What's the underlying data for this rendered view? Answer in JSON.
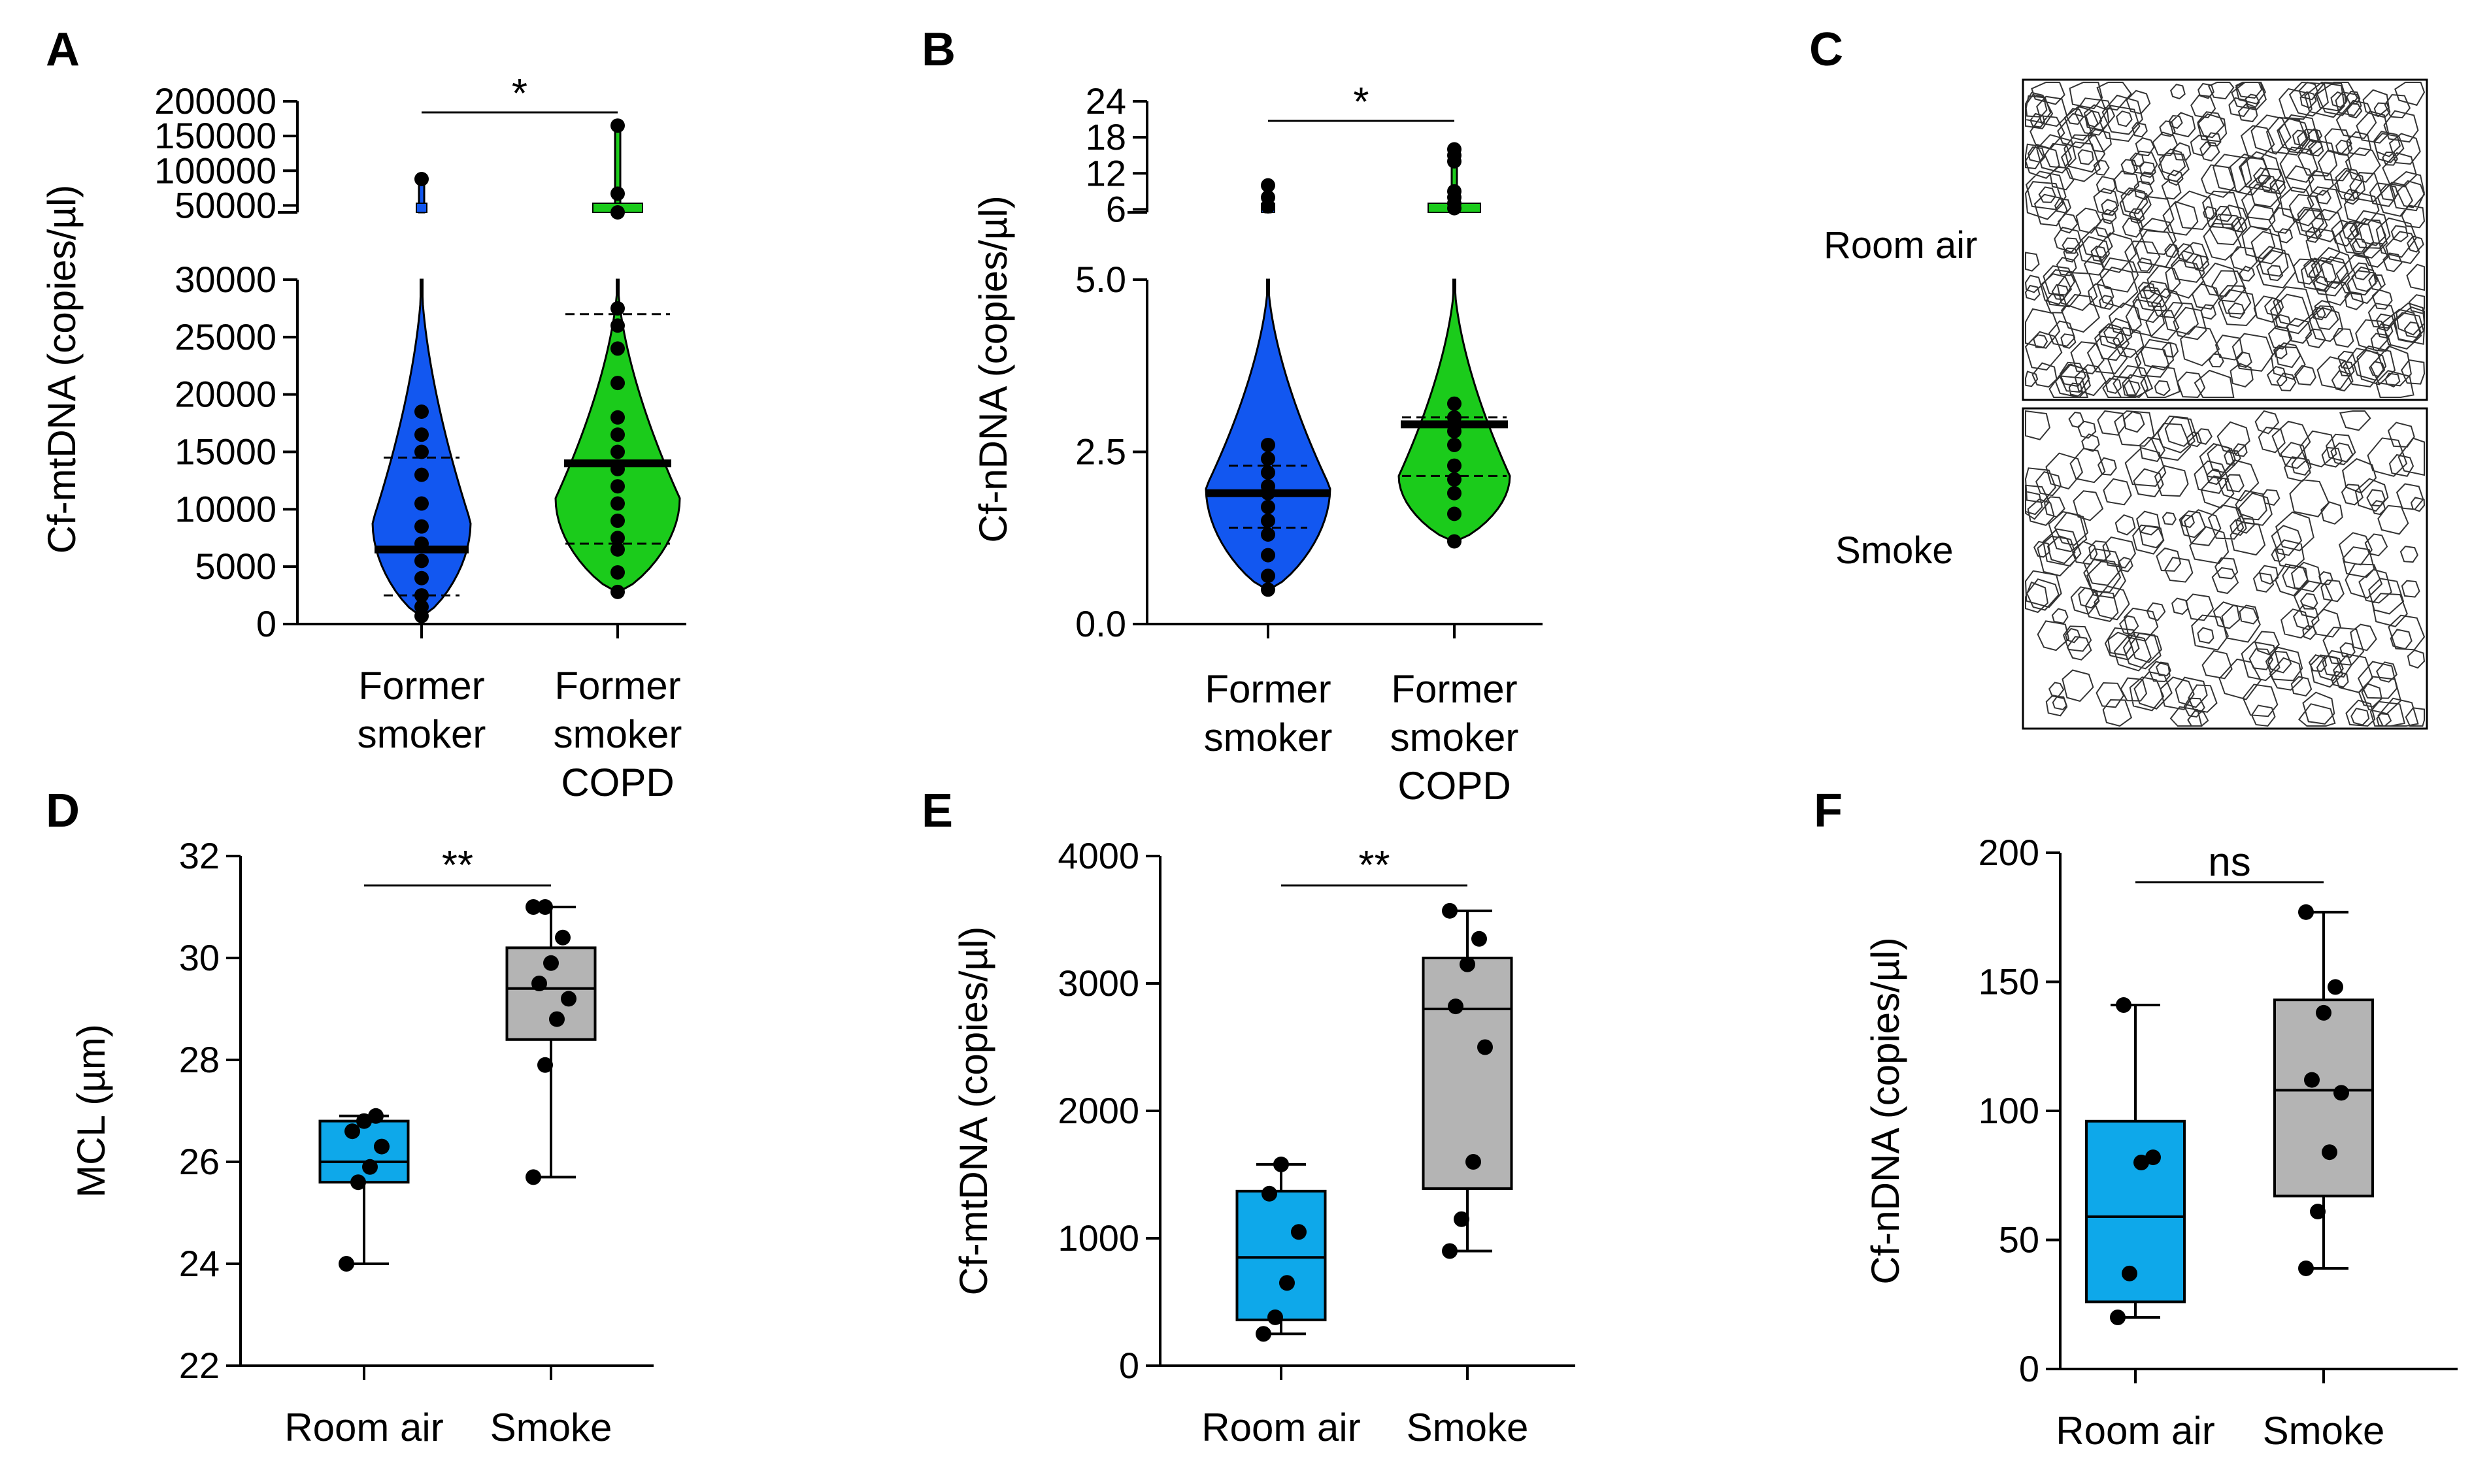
{
  "figure": {
    "panels": [
      {
        "letter": "A"
      },
      {
        "letter": "B"
      },
      {
        "letter": "C"
      },
      {
        "letter": "D"
      },
      {
        "letter": "E"
      },
      {
        "letter": "F"
      }
    ]
  },
  "colors": {
    "blue_violin": "#1257f0",
    "green_violin": "#1bcb1b",
    "cyan_box": "#0ea8ea",
    "gray_box": "#b4b4b4",
    "black": "#000000"
  },
  "chart_data": [
    {
      "panel": "A",
      "type": "violin",
      "ylabel": "Cf-mtDNA (copies/µl)",
      "categories": [
        "Former\nsmoker",
        "Former\nsmoker\nCOPD"
      ],
      "axis_break": true,
      "lower_ylim": [
        0,
        30000
      ],
      "lower_ticks": [
        0,
        5000,
        10000,
        15000,
        20000,
        25000,
        30000
      ],
      "upper_ylim": [
        40000,
        200000
      ],
      "upper_ticks": [
        50000,
        100000,
        150000,
        200000
      ],
      "tick_labels_lower": [
        "0",
        "5000",
        "10000",
        "15000",
        "20000",
        "25000",
        "30000"
      ],
      "tick_labels_upper": [
        "50000",
        "100000",
        "150000",
        "200000"
      ],
      "series": [
        {
          "name": "Former smoker",
          "color": "#1257f0",
          "range": [
            700,
            90000
          ],
          "median": 6500,
          "quartiles": [
            2500,
            14500
          ],
          "points": [
            700,
            1500,
            2500,
            4000,
            5500,
            7000,
            8500,
            10500,
            13000,
            15000,
            16500,
            18500,
            88000
          ]
        },
        {
          "name": "Former smoker COPD",
          "color": "#1bcb1b",
          "range": [
            2800,
            165000
          ],
          "median": 14000,
          "quartiles": [
            7000,
            27000
          ],
          "points": [
            2800,
            4500,
            6500,
            7500,
            9000,
            10500,
            12000,
            13500,
            15000,
            16500,
            18000,
            21000,
            24000,
            26000,
            27500,
            40000,
            67000,
            165000
          ]
        }
      ],
      "significance": "*"
    },
    {
      "panel": "B",
      "type": "violin",
      "ylabel": "Cf-nDNA (copies/µl)",
      "categories": [
        "Former\nsmoker",
        "Former\nsmoker\nCOPD"
      ],
      "axis_break": true,
      "lower_ylim": [
        0,
        5
      ],
      "lower_ticks": [
        0,
        2.5,
        5
      ],
      "tick_labels_lower": [
        "0.0",
        "2.5",
        "5.0"
      ],
      "upper_ylim": [
        5.5,
        24
      ],
      "upper_ticks": [
        6,
        12,
        18,
        24
      ],
      "tick_labels_upper": [
        "6",
        "12",
        "18",
        "24"
      ],
      "series": [
        {
          "name": "Former smoker",
          "color": "#1257f0",
          "range": [
            0.5,
            10
          ],
          "median": 1.9,
          "quartiles": [
            1.4,
            2.3
          ],
          "points": [
            0.5,
            0.7,
            1.0,
            1.3,
            1.5,
            1.7,
            1.9,
            2.0,
            2.2,
            2.4,
            2.6,
            6.5,
            8,
            10
          ]
        },
        {
          "name": "Former smoker COPD",
          "color": "#1bcb1b",
          "range": [
            1.2,
            16
          ],
          "median": 2.9,
          "quartiles": [
            2.15,
            3.0
          ],
          "points": [
            1.2,
            1.6,
            1.9,
            2.1,
            2.3,
            2.6,
            2.8,
            3.0,
            3.2,
            6.2,
            7,
            8,
            9,
            14,
            15,
            16
          ]
        }
      ],
      "significance": "*"
    },
    {
      "panel": "D",
      "type": "box",
      "ylabel": "MCL (µm)",
      "categories": [
        "Room air",
        "Smoke"
      ],
      "ylim": [
        22,
        32
      ],
      "ticks": [
        22,
        24,
        26,
        28,
        30,
        32
      ],
      "tick_labels": [
        "22",
        "24",
        "26",
        "28",
        "30",
        "32"
      ],
      "series": [
        {
          "name": "Room air",
          "color": "#0ea8ea",
          "whiskers": [
            24.0,
            26.9
          ],
          "quartiles": [
            25.6,
            26.8
          ],
          "median": 26.0,
          "points": [
            24.0,
            25.6,
            25.9,
            26.3,
            26.6,
            26.8,
            26.9
          ]
        },
        {
          "name": "Smoke",
          "color": "#b4b4b4",
          "whiskers": [
            25.7,
            31.0
          ],
          "quartiles": [
            28.4,
            30.2
          ],
          "median": 29.4,
          "points": [
            25.7,
            27.9,
            28.8,
            29.2,
            29.5,
            29.9,
            30.4,
            31.0,
            31.0
          ]
        }
      ],
      "significance": "**"
    },
    {
      "panel": "E",
      "type": "box",
      "ylabel": "Cf-mtDNA (copies/µl)",
      "categories": [
        "Room air",
        "Smoke"
      ],
      "ylim": [
        0,
        4000
      ],
      "ticks": [
        0,
        1000,
        2000,
        3000,
        4000
      ],
      "tick_labels": [
        "0",
        "1000",
        "2000",
        "3000",
        "4000"
      ],
      "series": [
        {
          "name": "Room air",
          "color": "#0ea8ea",
          "whiskers": [
            250,
            1580
          ],
          "quartiles": [
            360,
            1370
          ],
          "median": 850,
          "points": [
            250,
            380,
            650,
            1050,
            1350,
            1580
          ]
        },
        {
          "name": "Smoke",
          "color": "#b4b4b4",
          "whiskers": [
            900,
            3570
          ],
          "quartiles": [
            1390,
            3200
          ],
          "median": 2800,
          "points": [
            900,
            1150,
            1600,
            2500,
            2820,
            3150,
            3350,
            3570
          ]
        }
      ],
      "significance": "**"
    },
    {
      "panel": "F",
      "type": "box",
      "ylabel": "Cf-nDNA (copies/µl)",
      "categories": [
        "Room air",
        "Smoke"
      ],
      "ylim": [
        0,
        200
      ],
      "ticks": [
        0,
        50,
        100,
        150,
        200
      ],
      "tick_labels": [
        "0",
        "50",
        "100",
        "150",
        "200"
      ],
      "series": [
        {
          "name": "Room air",
          "color": "#0ea8ea",
          "whiskers": [
            20,
            141
          ],
          "quartiles": [
            26,
            96
          ],
          "median": 59,
          "points": [
            20,
            37,
            80,
            82,
            141
          ]
        },
        {
          "name": "Smoke",
          "color": "#b4b4b4",
          "whiskers": [
            39,
            177
          ],
          "quartiles": [
            67,
            143
          ],
          "median": 108,
          "points": [
            39,
            61,
            84,
            107,
            112,
            138,
            148,
            177
          ]
        }
      ],
      "significance": "ns"
    }
  ],
  "panel_c": {
    "images": [
      {
        "label": "Room air"
      },
      {
        "label": "Smoke"
      }
    ]
  }
}
